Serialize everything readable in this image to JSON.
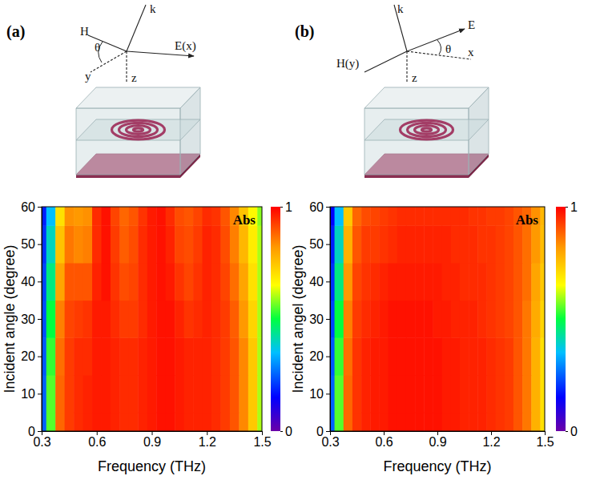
{
  "chart_data": [
    {
      "type": "heatmap",
      "title": "(a)",
      "x_label": "Frequency (THz)",
      "y_label": "Incident angle (degree)",
      "annotations": [
        "Abs"
      ],
      "schematic_labels": [
        "k",
        "H",
        "θ",
        "E(x)",
        "y",
        "z"
      ],
      "xlim": [
        0.3,
        1.5
      ],
      "xticks": [
        0.3,
        0.6,
        0.9,
        1.2,
        1.5
      ],
      "ylim": [
        0,
        60
      ],
      "yticks": [
        0,
        10,
        20,
        30,
        40,
        50,
        60
      ],
      "colorbar": {
        "range": [
          0,
          1
        ],
        "ticks": [
          0,
          1
        ]
      },
      "x": [
        0.3,
        0.35,
        0.4,
        0.45,
        0.5,
        0.55,
        0.6,
        0.65,
        0.7,
        0.75,
        0.8,
        0.85,
        0.9,
        0.95,
        1.0,
        1.05,
        1.1,
        1.15,
        1.2,
        1.25,
        1.3,
        1.35,
        1.4,
        1.45,
        1.5
      ],
      "y": [
        0,
        10,
        20,
        30,
        40,
        50,
        60
      ],
      "z": [
        [
          0.25,
          0.55,
          0.88,
          0.93,
          0.95,
          0.96,
          0.97,
          0.97,
          0.96,
          0.95,
          0.95,
          0.96,
          0.97,
          0.98,
          0.98,
          0.97,
          0.96,
          0.96,
          0.96,
          0.95,
          0.93,
          0.9,
          0.84,
          0.74,
          0.6
        ],
        [
          0.25,
          0.55,
          0.88,
          0.93,
          0.95,
          0.96,
          0.97,
          0.97,
          0.96,
          0.95,
          0.95,
          0.96,
          0.97,
          0.98,
          0.98,
          0.97,
          0.96,
          0.96,
          0.96,
          0.95,
          0.93,
          0.9,
          0.84,
          0.74,
          0.6
        ],
        [
          0.24,
          0.53,
          0.87,
          0.93,
          0.95,
          0.95,
          0.97,
          0.97,
          0.96,
          0.95,
          0.95,
          0.96,
          0.97,
          0.98,
          0.98,
          0.97,
          0.96,
          0.96,
          0.96,
          0.95,
          0.93,
          0.9,
          0.84,
          0.74,
          0.6
        ],
        [
          0.23,
          0.5,
          0.85,
          0.92,
          0.93,
          0.94,
          0.97,
          0.97,
          0.95,
          0.93,
          0.93,
          0.95,
          0.97,
          0.98,
          0.98,
          0.96,
          0.94,
          0.95,
          0.96,
          0.95,
          0.93,
          0.89,
          0.82,
          0.72,
          0.6
        ],
        [
          0.22,
          0.45,
          0.8,
          0.9,
          0.9,
          0.9,
          0.96,
          0.98,
          0.94,
          0.91,
          0.92,
          0.95,
          0.97,
          0.98,
          0.97,
          0.94,
          0.92,
          0.94,
          0.96,
          0.95,
          0.92,
          0.87,
          0.8,
          0.7,
          0.6
        ],
        [
          0.2,
          0.4,
          0.75,
          0.86,
          0.84,
          0.85,
          0.95,
          0.98,
          0.93,
          0.89,
          0.91,
          0.95,
          0.97,
          0.98,
          0.96,
          0.92,
          0.91,
          0.93,
          0.96,
          0.95,
          0.91,
          0.85,
          0.77,
          0.68,
          0.6
        ],
        [
          0.18,
          0.35,
          0.7,
          0.83,
          0.82,
          0.83,
          0.95,
          0.98,
          0.92,
          0.88,
          0.9,
          0.94,
          0.97,
          0.98,
          0.95,
          0.91,
          0.9,
          0.92,
          0.95,
          0.94,
          0.9,
          0.84,
          0.75,
          0.66,
          0.58
        ]
      ]
    },
    {
      "type": "heatmap",
      "title": "(b)",
      "x_label": "Frequency (THz)",
      "y_label": "Incident angel (degree)",
      "annotations": [
        "Abs"
      ],
      "schematic_labels": [
        "k",
        "E",
        "H(y)",
        "θ",
        "x",
        "z"
      ],
      "xlim": [
        0.3,
        1.5
      ],
      "xticks": [
        0.3,
        0.6,
        0.9,
        1.2,
        1.5
      ],
      "ylim": [
        0,
        60
      ],
      "yticks": [
        0,
        10,
        20,
        30,
        40,
        50,
        60
      ],
      "colorbar": {
        "range": [
          0,
          1
        ],
        "ticks": [
          0,
          1
        ]
      },
      "x": [
        0.3,
        0.35,
        0.4,
        0.45,
        0.5,
        0.55,
        0.6,
        0.65,
        0.7,
        0.75,
        0.8,
        0.85,
        0.9,
        0.95,
        1.0,
        1.05,
        1.1,
        1.15,
        1.2,
        1.25,
        1.3,
        1.35,
        1.4,
        1.45,
        1.5
      ],
      "y": [
        0,
        10,
        20,
        30,
        40,
        50,
        60
      ],
      "z": [
        [
          0.25,
          0.55,
          0.88,
          0.94,
          0.96,
          0.97,
          0.97,
          0.98,
          0.98,
          0.98,
          0.98,
          0.98,
          0.98,
          0.97,
          0.97,
          0.96,
          0.96,
          0.96,
          0.95,
          0.94,
          0.93,
          0.9,
          0.86,
          0.78,
          0.7
        ],
        [
          0.25,
          0.55,
          0.88,
          0.94,
          0.96,
          0.97,
          0.97,
          0.98,
          0.98,
          0.98,
          0.98,
          0.98,
          0.98,
          0.97,
          0.97,
          0.96,
          0.96,
          0.96,
          0.95,
          0.94,
          0.93,
          0.9,
          0.86,
          0.78,
          0.7
        ],
        [
          0.24,
          0.53,
          0.87,
          0.94,
          0.96,
          0.97,
          0.97,
          0.98,
          0.98,
          0.98,
          0.98,
          0.98,
          0.98,
          0.97,
          0.97,
          0.96,
          0.96,
          0.96,
          0.95,
          0.94,
          0.93,
          0.9,
          0.86,
          0.78,
          0.7
        ],
        [
          0.22,
          0.5,
          0.85,
          0.93,
          0.95,
          0.96,
          0.97,
          0.98,
          0.98,
          0.98,
          0.98,
          0.98,
          0.97,
          0.97,
          0.96,
          0.96,
          0.96,
          0.95,
          0.94,
          0.93,
          0.92,
          0.9,
          0.86,
          0.79,
          0.72
        ],
        [
          0.2,
          0.45,
          0.82,
          0.92,
          0.94,
          0.95,
          0.96,
          0.97,
          0.97,
          0.97,
          0.97,
          0.97,
          0.97,
          0.96,
          0.96,
          0.95,
          0.95,
          0.95,
          0.94,
          0.93,
          0.92,
          0.9,
          0.87,
          0.8,
          0.74
        ],
        [
          0.18,
          0.4,
          0.78,
          0.9,
          0.93,
          0.93,
          0.94,
          0.95,
          0.96,
          0.96,
          0.96,
          0.96,
          0.96,
          0.96,
          0.95,
          0.95,
          0.95,
          0.94,
          0.94,
          0.93,
          0.92,
          0.9,
          0.87,
          0.82,
          0.76
        ],
        [
          0.15,
          0.35,
          0.74,
          0.88,
          0.91,
          0.92,
          0.93,
          0.94,
          0.95,
          0.95,
          0.95,
          0.95,
          0.95,
          0.95,
          0.95,
          0.95,
          0.94,
          0.94,
          0.93,
          0.93,
          0.92,
          0.9,
          0.88,
          0.83,
          0.77
        ]
      ]
    }
  ]
}
